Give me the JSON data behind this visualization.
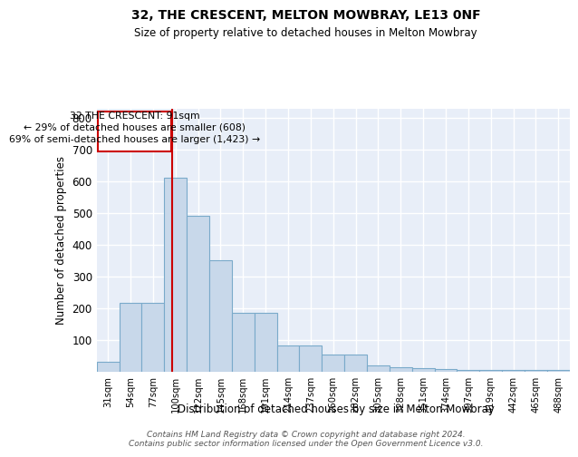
{
  "title1": "32, THE CRESCENT, MELTON MOWBRAY, LE13 0NF",
  "title2": "Size of property relative to detached houses in Melton Mowbray",
  "xlabel": "Distribution of detached houses by size in Melton Mowbray",
  "ylabel": "Number of detached properties",
  "footer": "Contains HM Land Registry data © Crown copyright and database right 2024.\nContains public sector information licensed under the Open Government Licence v3.0.",
  "bin_labels": [
    "31sqm",
    "54sqm",
    "77sqm",
    "100sqm",
    "122sqm",
    "145sqm",
    "168sqm",
    "191sqm",
    "214sqm",
    "237sqm",
    "260sqm",
    "282sqm",
    "305sqm",
    "328sqm",
    "351sqm",
    "374sqm",
    "397sqm",
    "419sqm",
    "442sqm",
    "465sqm",
    "488sqm"
  ],
  "bar_heights": [
    30,
    215,
    215,
    610,
    490,
    350,
    185,
    185,
    83,
    83,
    52,
    52,
    20,
    13,
    10,
    8,
    5,
    5,
    5,
    5,
    5
  ],
  "bar_color": "#c8d8ea",
  "bar_edge_color": "#7aaaca",
  "property_line_x": 2.87,
  "property_label": "32 THE CRESCENT: 91sqm",
  "annotation_line1": "← 29% of detached houses are smaller (608)",
  "annotation_line2": "69% of semi-detached houses are larger (1,423) →",
  "annotation_box_color": "#ffffff",
  "annotation_box_edge": "#cc0000",
  "vline_color": "#cc0000",
  "ylim": [
    0,
    830
  ],
  "yticks": [
    0,
    100,
    200,
    300,
    400,
    500,
    600,
    700,
    800
  ],
  "background_color": "#e8eef8",
  "grid_color": "#ffffff"
}
